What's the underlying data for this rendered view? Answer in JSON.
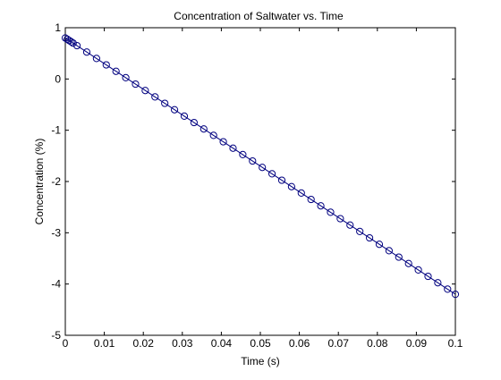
{
  "chart_data": {
    "type": "line",
    "title": "Concentration of Saltwater vs. Time",
    "xlabel": "Time (s)",
    "ylabel": "Concentration (%)",
    "xlim": [
      0,
      0.1
    ],
    "ylim": [
      -5,
      1
    ],
    "xticks": [
      0,
      0.01,
      0.02,
      0.03,
      0.04,
      0.05,
      0.06,
      0.07,
      0.08,
      0.09,
      0.1
    ],
    "xtick_labels": [
      "0",
      "0.01",
      "0.02",
      "0.03",
      "0.04",
      "0.05",
      "0.06",
      "0.07",
      "0.08",
      "0.09",
      "0.1"
    ],
    "yticks": [
      -5,
      -4,
      -3,
      -2,
      -1,
      0,
      1
    ],
    "ytick_labels": [
      "-5",
      "-4",
      "-3",
      "-2",
      "-1",
      "0",
      "1"
    ],
    "grid": false,
    "line_color": "#00007f",
    "marker": "circle",
    "series": [
      {
        "x": [
          0,
          0.0005,
          0.001,
          0.0015,
          0.002,
          0.003,
          0.0055,
          0.008,
          0.0105,
          0.013,
          0.0155,
          0.018,
          0.0205,
          0.023,
          0.0255,
          0.028,
          0.0305,
          0.033,
          0.0355,
          0.038,
          0.0405,
          0.043,
          0.0455,
          0.048,
          0.0505,
          0.053,
          0.0555,
          0.058,
          0.0605,
          0.063,
          0.0655,
          0.068,
          0.0705,
          0.073,
          0.0755,
          0.078,
          0.0805,
          0.083,
          0.0855,
          0.088,
          0.0905,
          0.093,
          0.0955,
          0.098,
          0.1
        ],
        "y": [
          0.8,
          0.775,
          0.75,
          0.725,
          0.7,
          0.65,
          0.525,
          0.4,
          0.275,
          0.15,
          0.025,
          -0.1,
          -0.225,
          -0.35,
          -0.475,
          -0.6,
          -0.725,
          -0.85,
          -0.975,
          -1.1,
          -1.225,
          -1.35,
          -1.475,
          -1.6,
          -1.725,
          -1.85,
          -1.975,
          -2.1,
          -2.225,
          -2.35,
          -2.475,
          -2.6,
          -2.725,
          -2.85,
          -2.975,
          -3.1,
          -3.225,
          -3.35,
          -3.475,
          -3.6,
          -3.725,
          -3.85,
          -3.975,
          -4.1,
          -4.2
        ]
      }
    ]
  }
}
